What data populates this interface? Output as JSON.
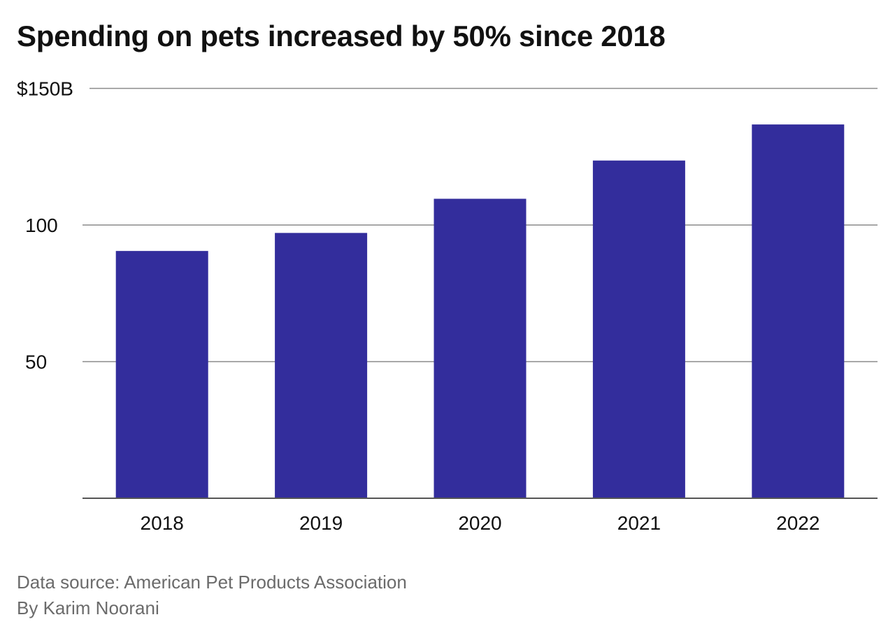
{
  "chart_data": {
    "type": "bar",
    "title": "Spending on pets increased by 50% since 2018",
    "categories": [
      "2018",
      "2019",
      "2020",
      "2021",
      "2022"
    ],
    "values": [
      90.5,
      97.1,
      109.6,
      123.6,
      136.8
    ],
    "ylim": [
      0,
      150
    ],
    "yticks": [
      50,
      100,
      150
    ],
    "ytick_labels": [
      "50",
      "100",
      "$150B"
    ],
    "xlabel": "",
    "ylabel": "",
    "grid": true,
    "bar_color": "#332d9c"
  },
  "footer": {
    "source": "Data source: American Pet Products Association",
    "byline": "By Karim Noorani"
  }
}
